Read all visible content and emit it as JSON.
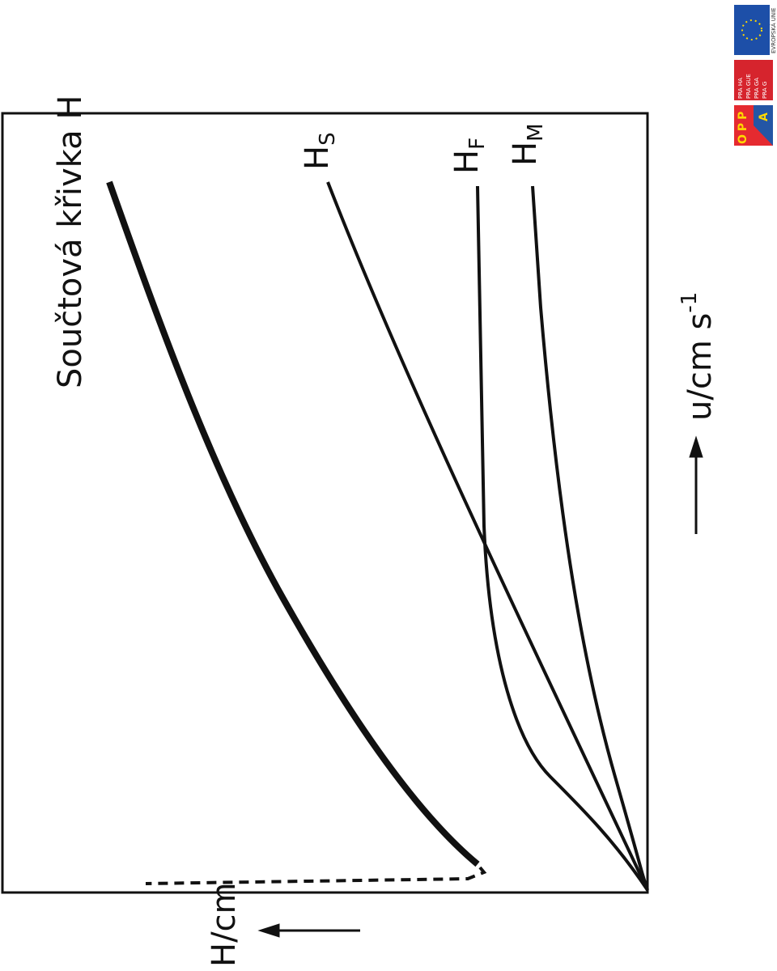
{
  "figure": {
    "title": "Součtová křivka H",
    "curves": [
      {
        "label": "H",
        "sub": "S"
      },
      {
        "label": "H",
        "sub": "F"
      },
      {
        "label": "H",
        "sub": "M"
      }
    ],
    "x_axis": {
      "text": "u/cm s",
      "sup": "-1"
    },
    "y_axis": {
      "text": "H/cm"
    }
  },
  "logos": {
    "eu": "EVROPSKÁ UNIE",
    "prague": [
      "PRA HA",
      "PRA GUE",
      "PRA GA",
      "PRA G"
    ],
    "opp": "OPP",
    "opp_letter": "A"
  }
}
